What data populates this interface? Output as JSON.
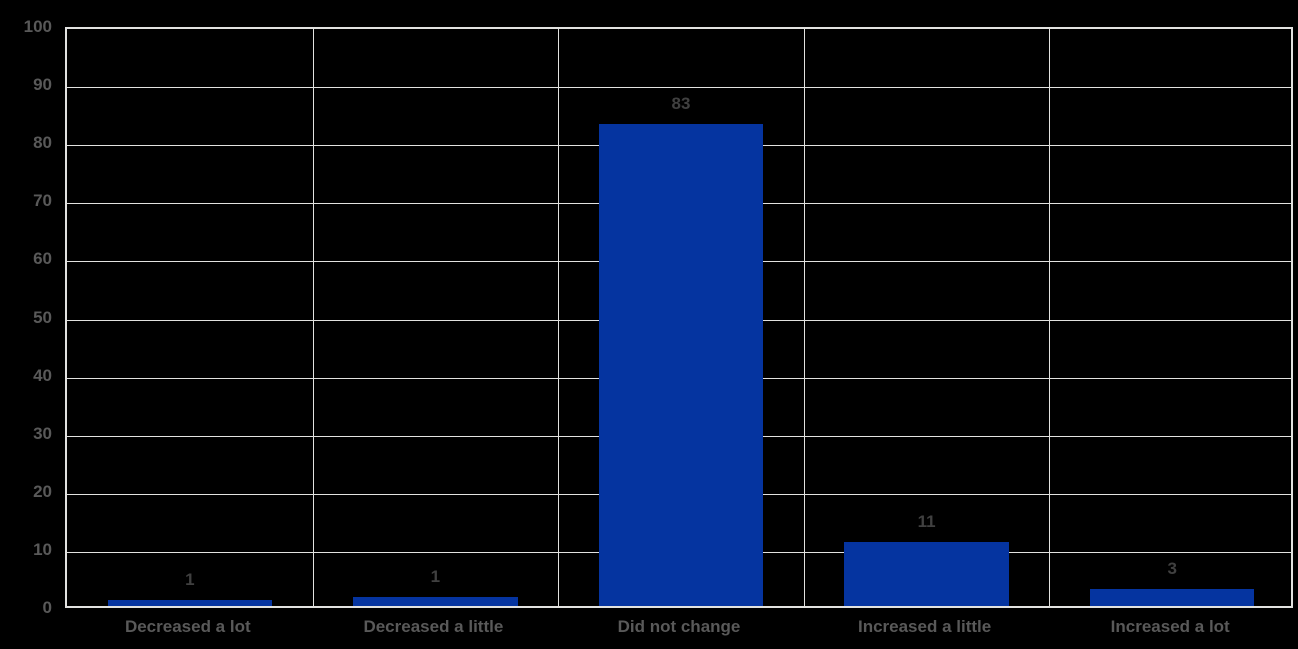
{
  "chart_data": {
    "type": "bar",
    "title": "",
    "xlabel": "",
    "ylabel": "",
    "categories": [
      "Decreased a lot",
      "Decreased a little",
      "Did not change",
      "Increased a little",
      "Increased a lot"
    ],
    "values": [
      1,
      1,
      83,
      11,
      3
    ],
    "value_labels": [
      "1",
      "1",
      "83",
      "11",
      "3"
    ],
    "display_heights": [
      1,
      1.5,
      83,
      11,
      3
    ],
    "ylim": [
      0,
      100
    ],
    "yticks": [
      0,
      10,
      20,
      30,
      40,
      50,
      60,
      70,
      80,
      90,
      100
    ],
    "grid": true,
    "legend": "none",
    "colors": {
      "background": "#000000",
      "bar": "#0534A0",
      "gridline": "#E2E2E0",
      "plot_border": "#E2E2E0",
      "value_label": "#404040",
      "axis_label": "#595959"
    }
  }
}
